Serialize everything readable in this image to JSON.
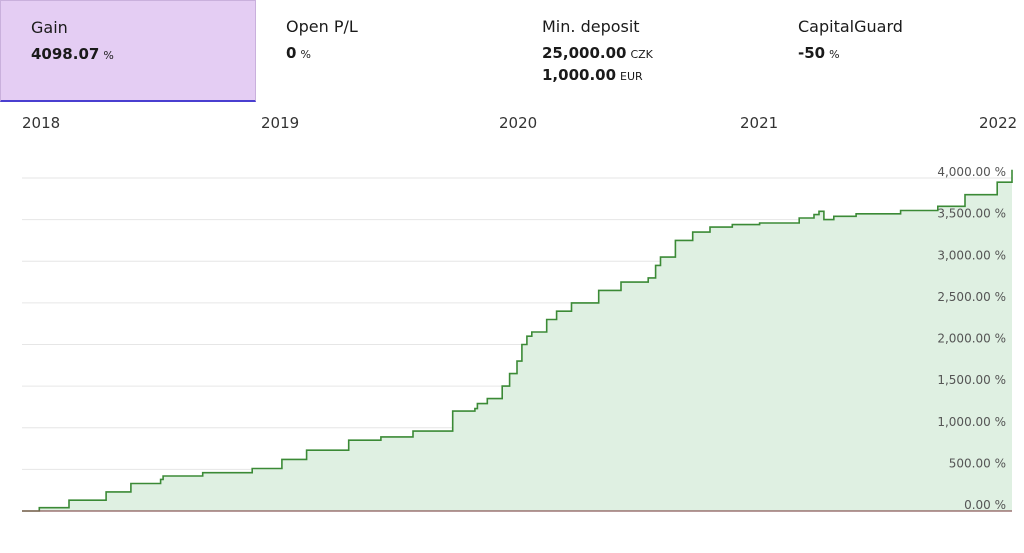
{
  "stats": [
    {
      "label": "Gain",
      "value": "4098.07",
      "unit": "%"
    },
    {
      "label": "Open P/L",
      "value": "0",
      "unit": "%"
    },
    {
      "label": "Min. deposit",
      "value": "25,000.00",
      "unit": "CZK",
      "value2": "1,000.00",
      "unit2": "EUR"
    },
    {
      "label": "CapitalGuard",
      "value": "-50",
      "unit": "%"
    }
  ],
  "years": [
    "2018",
    "2019",
    "2020",
    "2021",
    "2022"
  ],
  "colors": {
    "line": "#3b8a36",
    "fill": "#dff0e2",
    "grid": "#e6e6e6",
    "baseline": "#8b5a5a",
    "active_tab": "#e4cdf3"
  },
  "chart_data": {
    "type": "area",
    "title": "",
    "xlabel": "",
    "ylabel": "",
    "xlim": [
      2018.0,
      2022.0
    ],
    "ylim": [
      0,
      4000
    ],
    "y_ticks": [
      "0.00 %",
      "500.00 %",
      "1,000.00 %",
      "1,500.00 %",
      "2,000.00 %",
      "2,500.00 %",
      "3,000.00 %",
      "3,500.00 %",
      "4,000.00 %"
    ],
    "x_ticks": [
      "2018",
      "2019",
      "2020",
      "2021",
      "2022"
    ],
    "grid": true,
    "series": [
      {
        "x": [
          2018.0,
          2018.07,
          2018.19,
          2018.34,
          2018.44,
          2018.56,
          2018.57,
          2018.73,
          2018.93,
          2019.05,
          2019.15,
          2019.32,
          2019.45,
          2019.58,
          2019.74,
          2019.83,
          2019.84,
          2019.88,
          2019.94,
          2019.97,
          2020.0,
          2020.02,
          2020.04,
          2020.06,
          2020.12,
          2020.16,
          2020.22,
          2020.33,
          2020.42,
          2020.53,
          2020.56,
          2020.58,
          2020.64,
          2020.71,
          2020.78,
          2020.87,
          2020.98,
          2021.14,
          2021.2,
          2021.22,
          2021.24,
          2021.28,
          2021.37,
          2021.55,
          2021.7,
          2021.81,
          2021.94,
          2022.0
        ],
        "y": [
          0,
          40,
          130,
          230,
          330,
          380,
          420,
          460,
          510,
          620,
          730,
          850,
          890,
          960,
          1200,
          1230,
          1290,
          1350,
          1500,
          1650,
          1800,
          2000,
          2100,
          2150,
          2300,
          2400,
          2500,
          2650,
          2750,
          2800,
          2950,
          3050,
          3250,
          3350,
          3410,
          3440,
          3460,
          3520,
          3560,
          3600,
          3500,
          3540,
          3570,
          3610,
          3660,
          3800,
          3950,
          4098.07
        ]
      }
    ]
  }
}
